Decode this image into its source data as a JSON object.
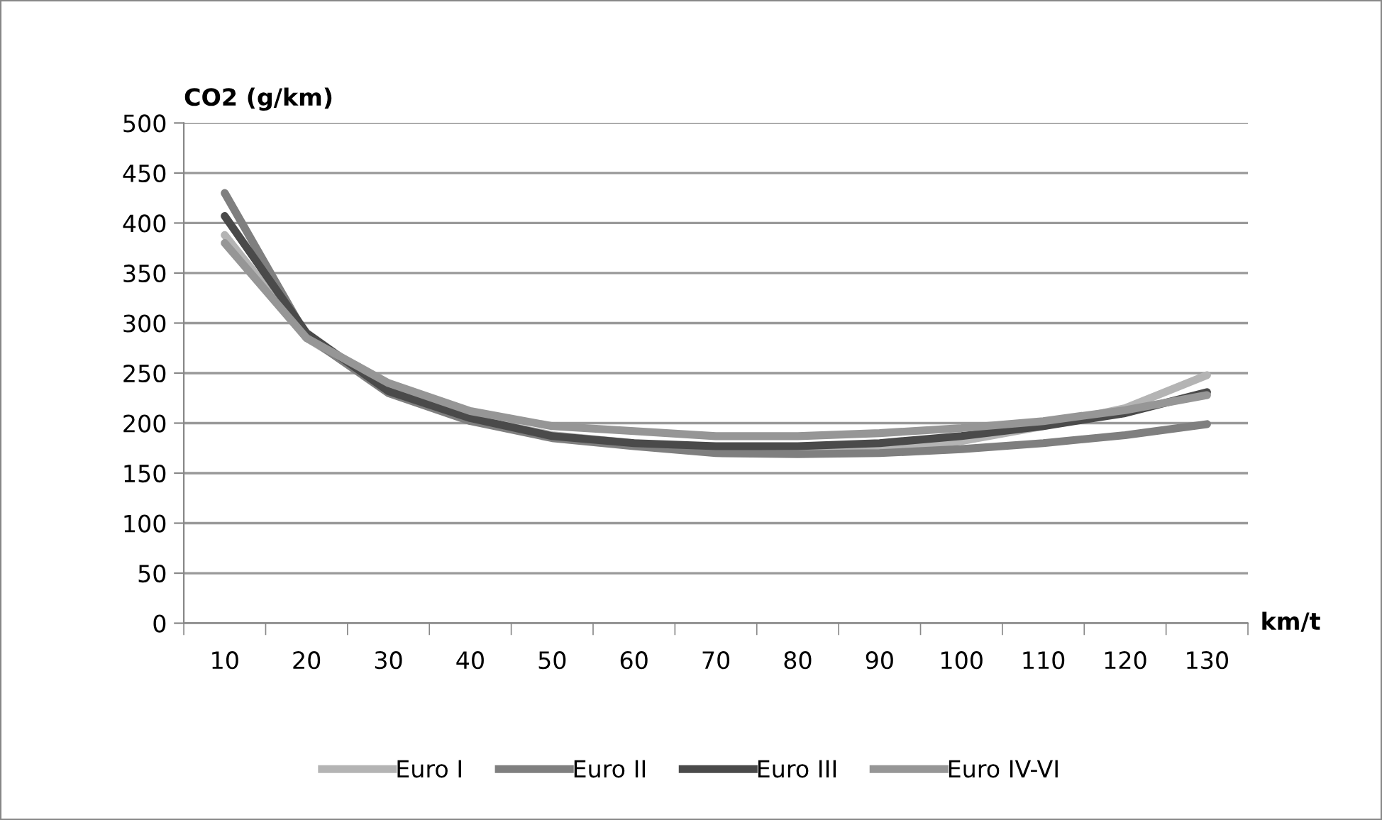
{
  "chart_data": {
    "type": "line",
    "ylabel": "CO2 (g/km)",
    "xlabel": "km/t",
    "categories": [
      "10",
      "20",
      "30",
      "40",
      "50",
      "60",
      "70",
      "80",
      "90",
      "100",
      "110",
      "120",
      "130"
    ],
    "series": [
      {
        "name": "Euro I",
        "color": "#b4b4b4",
        "values": [
          388,
          285,
          235,
          205,
          188,
          180,
          172,
          172,
          175,
          182,
          197,
          215,
          248
        ]
      },
      {
        "name": "Euro II",
        "color": "#7f7f7f",
        "values": [
          430,
          287,
          230,
          202,
          185,
          177,
          170,
          169,
          170,
          174,
          180,
          188,
          199
        ]
      },
      {
        "name": "Euro III",
        "color": "#4a4a4a",
        "values": [
          407,
          290,
          232,
          205,
          187,
          180,
          177,
          177,
          180,
          187,
          197,
          210,
          231
        ]
      },
      {
        "name": "Euro IV-VI",
        "color": "#969696",
        "values": [
          380,
          285,
          240,
          212,
          197,
          192,
          187,
          187,
          190,
          195,
          202,
          213,
          228
        ]
      }
    ],
    "ylim": [
      0,
      500
    ],
    "yticks": [
      0,
      50,
      100,
      150,
      200,
      250,
      300,
      350,
      400,
      450,
      500
    ],
    "grid": "y",
    "legend": "bottom",
    "marker": "none",
    "line_style": "solid"
  }
}
